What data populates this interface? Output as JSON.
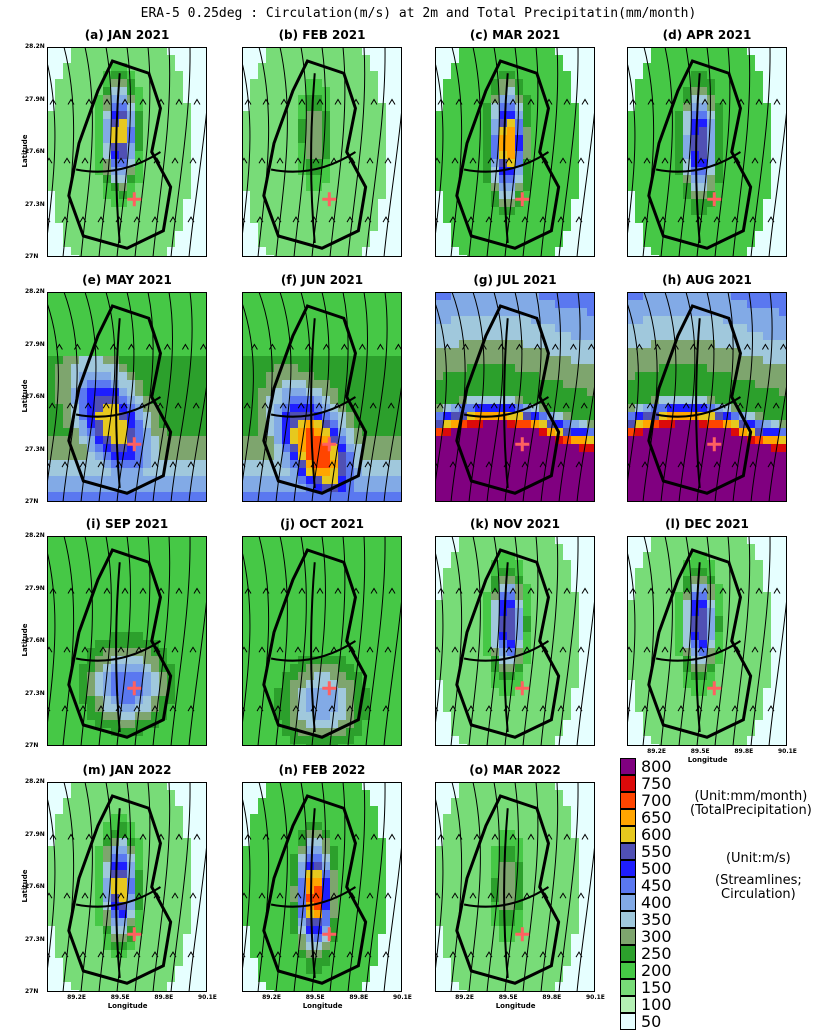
{
  "title": "ERA-5 0.25deg : Circulation(m/s) at 2m and Total Precipitatin(mm/month)",
  "axis_labels": {
    "ylabel": "Latitude",
    "xlabel": "Longitude"
  },
  "lat_ticks": [
    "28.2N",
    "27.9N",
    "27.6N",
    "27.3N",
    "27N"
  ],
  "lon_ticks": [
    "89.2E",
    "89.5E",
    "89.8E",
    "90.1E"
  ],
  "legend_notes": {
    "precip_unit": "(Unit:mm/month)",
    "precip_name": "(TotalPrecipitation)",
    "wind_unit": "(Unit:m/s)",
    "wind_name_1": "(Streamlines;",
    "wind_name_2": "Circulation)"
  },
  "chart_data": {
    "type": "heatmap",
    "variable": "Total Precipitation (mm/month) with 2 m circulation streamlines",
    "lat_range": [
      27.0,
      28.2
    ],
    "lon_range": [
      89.0,
      90.1
    ],
    "marker": {
      "symbol": "+",
      "lon": 89.6,
      "lat": 27.33,
      "color": "#ff6060"
    },
    "panels": [
      {
        "label": "(a) JAN 2021",
        "peak_mm": 650,
        "core_lat": 27.7,
        "background_mm": 150,
        "pattern": "core"
      },
      {
        "label": "(b) FEB 2021",
        "peak_mm": 350,
        "core_lat": 27.7,
        "background_mm": 150,
        "pattern": "core"
      },
      {
        "label": "(c) MAR 2021",
        "peak_mm": 700,
        "core_lat": 27.65,
        "background_mm": 200,
        "pattern": "core"
      },
      {
        "label": "(d) APR 2021",
        "peak_mm": 600,
        "core_lat": 27.65,
        "background_mm": 200,
        "pattern": "core"
      },
      {
        "label": "(e) MAY 2021",
        "peak_mm": 650,
        "core_lat": 27.45,
        "background_mm": 250,
        "pattern": "south"
      },
      {
        "label": "(f) JUN 2021",
        "peak_mm": 750,
        "core_lat": 27.3,
        "background_mm": 250,
        "pattern": "south"
      },
      {
        "label": "(g) JUL 2021",
        "peak_mm": 800,
        "core_lat": 27.3,
        "background_mm": 250,
        "pattern": "monsoon"
      },
      {
        "label": "(h) AUG 2021",
        "peak_mm": 800,
        "core_lat": 27.3,
        "background_mm": 250,
        "pattern": "monsoon"
      },
      {
        "label": "(i) SEP 2021",
        "peak_mm": 500,
        "core_lat": 27.35,
        "background_mm": 200,
        "pattern": "southeast"
      },
      {
        "label": "(j) OCT 2021",
        "peak_mm": 450,
        "core_lat": 27.25,
        "background_mm": 200,
        "pattern": "southeast"
      },
      {
        "label": "(k) NOV 2021",
        "peak_mm": 600,
        "core_lat": 27.7,
        "background_mm": 150,
        "pattern": "core"
      },
      {
        "label": "(l) DEC 2021",
        "peak_mm": 600,
        "core_lat": 27.7,
        "background_mm": 150,
        "pattern": "core"
      },
      {
        "label": "(m) JAN 2022",
        "peak_mm": 650,
        "core_lat": 27.6,
        "background_mm": 150,
        "pattern": "core"
      },
      {
        "label": "(n) FEB 2022",
        "peak_mm": 750,
        "core_lat": 27.55,
        "background_mm": 200,
        "pattern": "core"
      },
      {
        "label": "(o) MAR 2022",
        "peak_mm": 350,
        "core_lat": 27.6,
        "background_mm": 150,
        "pattern": "core"
      }
    ],
    "colorbar": {
      "levels": [
        50,
        100,
        150,
        200,
        250,
        300,
        350,
        400,
        450,
        500,
        550,
        600,
        650,
        700,
        750,
        800
      ],
      "colors": [
        "#e6ffff",
        "#b4f0b4",
        "#78dc78",
        "#46c846",
        "#2ca02c",
        "#7ea56e",
        "#a0c8dc",
        "#82aae6",
        "#5a78f0",
        "#1e1eff",
        "#5050b4",
        "#e6c81e",
        "#ffa500",
        "#ff4500",
        "#dc0a0a",
        "#800080"
      ]
    }
  }
}
